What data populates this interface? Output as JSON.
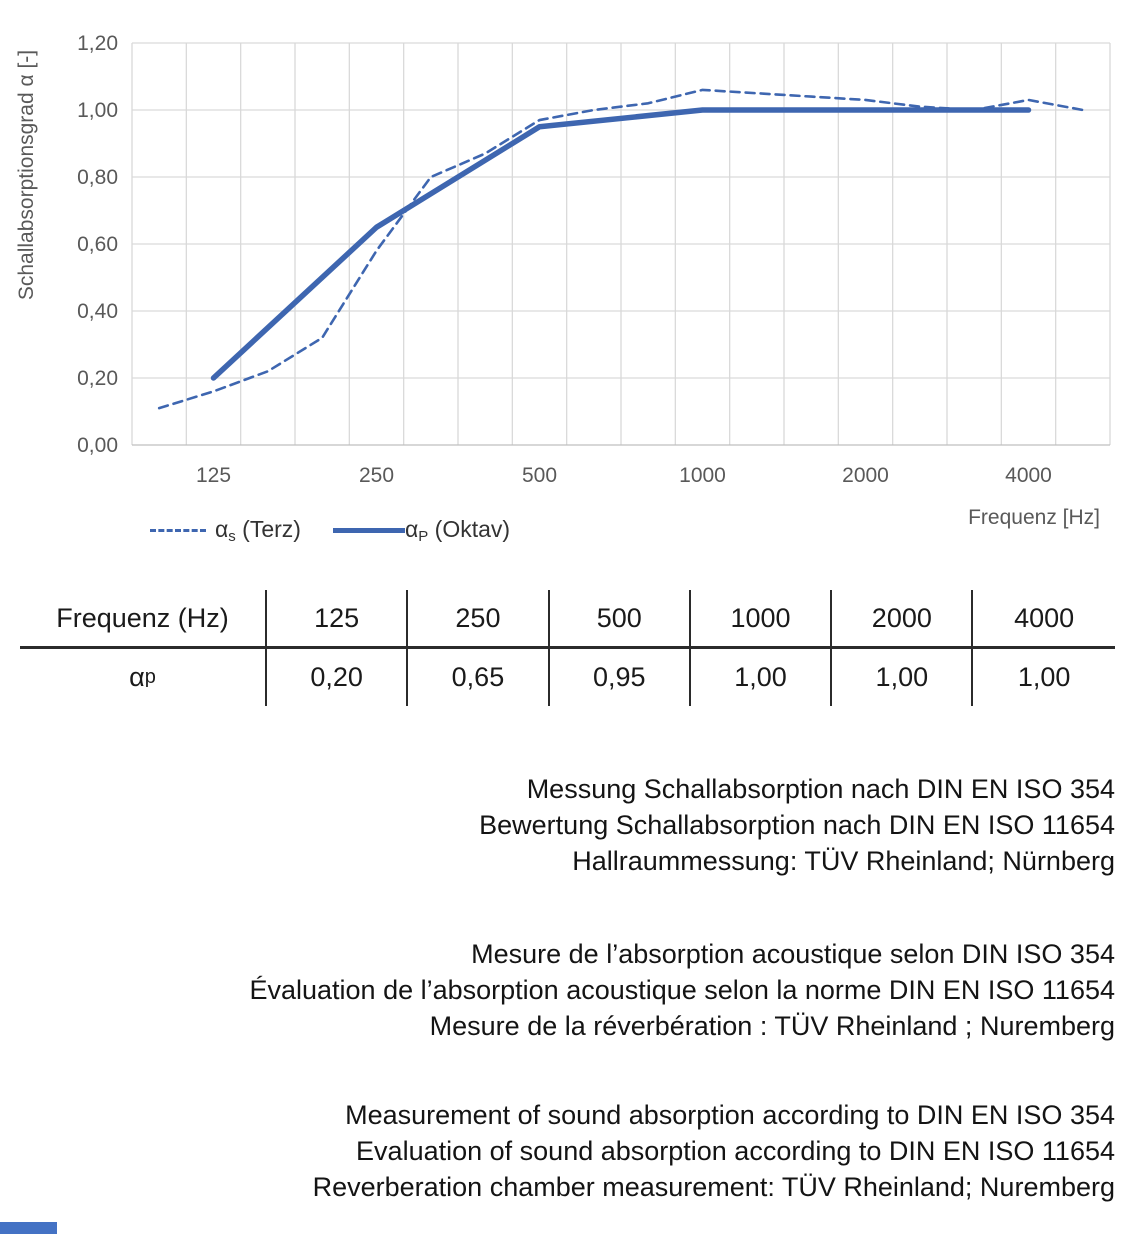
{
  "chart": {
    "y_axis_label": "Schallabsorptionsgrad α [-]",
    "x_axis_label": "Frequenz [Hz]",
    "legend": [
      {
        "symbol_base": "α",
        "symbol_sub": "s",
        "label": " (Terz)",
        "style": "dashed"
      },
      {
        "symbol_base": "α",
        "symbol_sub": "P",
        "label": " (Oktav)",
        "style": "solid"
      }
    ]
  },
  "chart_data": {
    "type": "line",
    "title": "",
    "xlabel": "Frequenz [Hz]",
    "ylabel": "Schallabsorptionsgrad α [-]",
    "x_scale": "third-octave-band categories (logarithmic frequency)",
    "categories": [
      100,
      125,
      160,
      200,
      250,
      315,
      400,
      500,
      630,
      800,
      1000,
      1250,
      1600,
      2000,
      2500,
      3150,
      4000,
      5000
    ],
    "x_tick_values": [
      125,
      250,
      500,
      1000,
      2000,
      4000
    ],
    "x_tick_labels": [
      "125",
      "250",
      "500",
      "1000",
      "2000",
      "4000"
    ],
    "y_ticks": [
      0,
      0.2,
      0.4,
      0.6,
      0.8,
      1.0,
      1.2
    ],
    "y_tick_labels": [
      "0,00",
      "0,20",
      "0,40",
      "0,60",
      "0,80",
      "1,00",
      "1,20"
    ],
    "ylim": [
      0,
      1.2
    ],
    "grid": true,
    "legend_position": "bottom-left",
    "series": [
      {
        "name": "αs (Terz)",
        "style": "dashed",
        "color": "#3E66B0",
        "x": [
          100,
          125,
          160,
          200,
          250,
          315,
          400,
          500,
          630,
          800,
          1000,
          1250,
          1600,
          2000,
          2500,
          3150,
          4000,
          5000
        ],
        "values": [
          0.11,
          0.16,
          0.22,
          0.32,
          0.58,
          0.8,
          0.87,
          0.97,
          1.0,
          1.02,
          1.06,
          1.05,
          1.04,
          1.03,
          1.01,
          1.0,
          1.03,
          1.0
        ]
      },
      {
        "name": "αP (Oktav)",
        "style": "solid",
        "color": "#3E66B0",
        "x": [
          125,
          250,
          500,
          1000,
          2000,
          4000
        ],
        "values": [
          0.2,
          0.65,
          0.95,
          1.0,
          1.0,
          1.0
        ]
      }
    ]
  },
  "table": {
    "header": [
      "Frequenz (Hz)",
      "125",
      "250",
      "500",
      "1000",
      "2000",
      "4000"
    ],
    "row_label_base": "α",
    "row_label_sub": "p",
    "values": [
      "0,20",
      "0,65",
      "0,95",
      "1,00",
      "1,00",
      "1,00"
    ]
  },
  "notes": {
    "german": [
      "Messung Schallabsorption nach DIN EN ISO 354",
      "Bewertung Schallabsorption nach DIN EN ISO 11654",
      "Hallraummessung: TÜV Rheinland; Nürnberg"
    ],
    "french": [
      "Mesure de l’absorption acoustique selon DIN ISO 354",
      "Évaluation de l’absorption acoustique selon la norme DIN EN ISO 11654",
      "Mesure de la réverbération : TÜV Rheinland ; Nuremberg"
    ],
    "english": [
      "Measurement of sound absorption according to DIN EN ISO 354",
      "Evaluation of sound absorption according to DIN EN ISO 11654",
      "Reverberation chamber measurement: TÜV Rheinland; Nuremberg"
    ]
  },
  "colors": {
    "line_blue": "#3E66B0",
    "grid": "#D9D9D9",
    "axis_line": "#BFBFBF",
    "axis_text": "#595959",
    "table_line": "#2B2B2B",
    "body_text": "#141414",
    "footer_bar": "#4472C4"
  }
}
